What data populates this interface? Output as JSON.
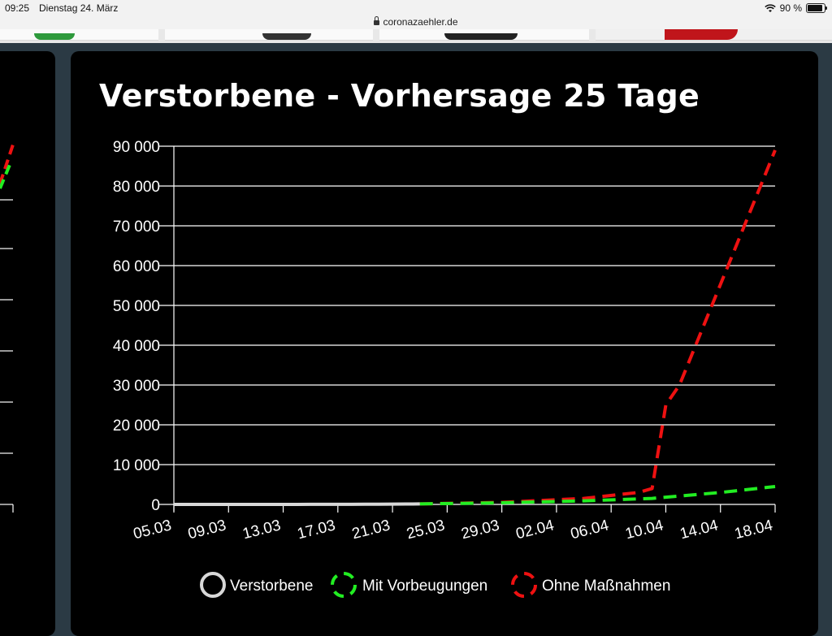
{
  "status_bar": {
    "time": "09:25",
    "date": "Dienstag 24. März",
    "url": "coronazaehler.de",
    "battery": "90 %",
    "battery_level": 0.9
  },
  "colors": {
    "page_bg": "#2b3a44",
    "panel_bg": "#000000",
    "verstorbene": "#d8d8d8",
    "mit_vorbeugungen": "#22ee22",
    "ohne_massnahmen": "#ee1111",
    "ad_accent": "#c0151b",
    "ad_green": "#2e9a3c"
  },
  "icons": [
    "lock-icon",
    "wifi-icon",
    "battery-icon"
  ],
  "chart_data": {
    "type": "line",
    "title": "Verstorbene - Vorhersage 25 Tage",
    "xlabel": "",
    "ylabel": "",
    "ylim": [
      0,
      90000
    ],
    "y_ticks": [
      0,
      10000,
      20000,
      30000,
      40000,
      50000,
      60000,
      70000,
      80000,
      90000
    ],
    "y_tick_labels": [
      "0",
      "10 000",
      "20 000",
      "30 000",
      "40 000",
      "50 000",
      "60 000",
      "70 000",
      "80 000",
      "90 000"
    ],
    "x_tick_labels": [
      "05.03",
      "09.03",
      "13.03",
      "17.03",
      "21.03",
      "25.03",
      "29.03",
      "02.04",
      "06.04",
      "10.04",
      "14.04",
      "18.04"
    ],
    "grid": true,
    "legend_position": "bottom",
    "series": [
      {
        "name": "Verstorbene",
        "x": [
          "05.03",
          "06.03",
          "07.03",
          "08.03",
          "09.03",
          "10.03",
          "11.03",
          "12.03",
          "13.03",
          "14.03",
          "15.03",
          "16.03",
          "17.03",
          "18.03",
          "19.03",
          "20.03",
          "21.03",
          "22.03",
          "23.03"
        ],
        "values": [
          0,
          0,
          0,
          0,
          0,
          2,
          2,
          3,
          7,
          9,
          12,
          13,
          24,
          28,
          44,
          67,
          84,
          94,
          123
        ]
      },
      {
        "name": "Mit Vorbeugungen",
        "x": [
          "23.03",
          "29.03",
          "04.04",
          "09.04",
          "14.04",
          "18.04"
        ],
        "values": [
          123,
          400,
          900,
          1500,
          3000,
          4500
        ]
      },
      {
        "name": "Ohne Maßnahmen",
        "x": [
          "23.03",
          "29.03",
          "04.04",
          "08.04",
          "09.04",
          "10.04",
          "11.04",
          "18.04"
        ],
        "values": [
          123,
          500,
          1500,
          3000,
          4000,
          25000,
          30000,
          89000
        ]
      }
    ]
  }
}
